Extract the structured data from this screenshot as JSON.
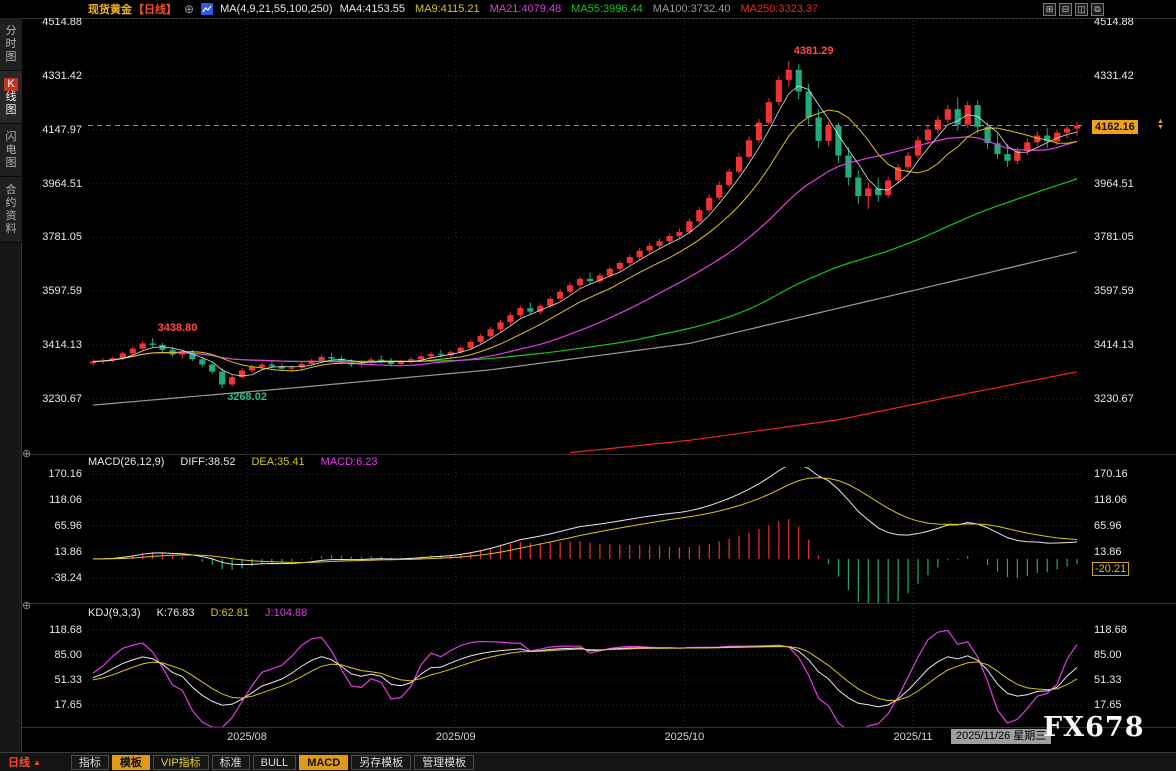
{
  "colors": {
    "up": "#ef3232",
    "down": "#23a97d",
    "ma4": "#e0e0e0",
    "ma9": "#d6c51e",
    "ma21": "#e23ce2",
    "ma55": "#17c520",
    "ma100": "#9a9a9a",
    "ma250": "#ee2525",
    "grid": "#2e2e2e",
    "dashed_line": "#c98a1f",
    "badge_bg": "#f0a11a",
    "anno_red": "#ff4a4a",
    "anno_green": "#2bbf8a"
  },
  "topbar": {
    "symbol": "现货黄金",
    "period_tag": "【日线】",
    "ma_group_label": "MA(4,9,21,55,100,250)",
    "ma_items": [
      {
        "text": "MA4:4153.55",
        "color": "#e8e8e8"
      },
      {
        "text": "MA9:4115.21",
        "color": "#d6c51e"
      },
      {
        "text": "MA21:4079.48",
        "color": "#e23ce2"
      },
      {
        "text": "MA55:3996.44",
        "color": "#17c520"
      },
      {
        "text": "MA100:3732.40",
        "color": "#9a9a9a"
      },
      {
        "text": "MA250:3323.37",
        "color": "#ee2525"
      }
    ],
    "window_icons": [
      "⊞",
      "⊟",
      "◫",
      "⧉"
    ]
  },
  "sidebar": {
    "items": [
      {
        "label": "分时图",
        "active": false
      },
      {
        "label": "K线图",
        "active": true
      },
      {
        "label": "闪电图",
        "active": false
      },
      {
        "label": "合约资料",
        "active": false
      }
    ]
  },
  "main_panel": {
    "y_labels": [
      "4514.88",
      "4331.42",
      "4147.97",
      "3964.51",
      "3781.05",
      "3597.59",
      "3414.13",
      "3230.67"
    ],
    "last_price": "4162.16",
    "annotations": [
      {
        "text": "4381.29",
        "color": "#ff4a4a",
        "idx": 70,
        "price": 4381.29,
        "pos": "above"
      },
      {
        "text": "3438.80",
        "color": "#ff4a4a",
        "idx": 6,
        "price": 3438.8,
        "pos": "above"
      },
      {
        "text": "3268.02",
        "color": "#2bbf8a",
        "idx": 13,
        "price": 3268.02,
        "pos": "below"
      }
    ]
  },
  "macd_panel": {
    "title": "MACD(26,12,9)",
    "diff_label": "DIFF:38.52",
    "dea_label": "DEA:35.41",
    "macd_label": "MACD:6.23",
    "y_labels": [
      "170.16",
      "118.06",
      "65.96",
      "13.86",
      "-38.24"
    ],
    "badge": "-20.21"
  },
  "kdj_panel": {
    "title": "KDJ(9,3,3)",
    "k_label": "K:76.83",
    "d_label": "D:62.81",
    "j_label": "J:104.88",
    "y_labels": [
      "118.68",
      "85.00",
      "51.33",
      "17.65"
    ]
  },
  "x_axis": {
    "month_labels": [
      {
        "label": "2025/08",
        "idx": 16
      },
      {
        "label": "2025/09",
        "idx": 37
      },
      {
        "label": "2025/10",
        "idx": 60
      },
      {
        "label": "2025/11",
        "idx": 83
      }
    ],
    "date_badge": "2025/11/26 星期三",
    "watermark": "FX678"
  },
  "toolbar": {
    "period": "日线",
    "tabs": [
      {
        "label": "指标",
        "style": "normal"
      },
      {
        "label": "模板",
        "style": "selected"
      },
      {
        "label": "VIP指标",
        "style": "vip"
      },
      {
        "label": "标准",
        "style": "normal"
      },
      {
        "label": "BULL",
        "style": "normal"
      },
      {
        "label": "MACD",
        "style": "selected"
      },
      {
        "label": "另存模板",
        "style": "normal"
      },
      {
        "label": "管理模板",
        "style": "normal"
      }
    ]
  },
  "chart_data": {
    "type": "candlestick",
    "symbol": "现货黄金",
    "period": "日线",
    "last_price": 4162.16,
    "price_axis": {
      "max": 4514.88,
      "min": 3230.67
    },
    "ma_periods": [
      4,
      9,
      21,
      55,
      100,
      250
    ],
    "ma_latest": {
      "ma4": 4153.55,
      "ma9": 4115.21,
      "ma21": 4079.48,
      "ma55": 3996.44,
      "ma100": 3732.4,
      "ma250": 3323.37
    },
    "month_start_indices": {
      "2025/08": 16,
      "2025/09": 37,
      "2025/10": 60,
      "2025/11": 83
    },
    "ma100_anchors": [
      [
        0,
        3210
      ],
      [
        20,
        3268
      ],
      [
        40,
        3330
      ],
      [
        60,
        3420
      ],
      [
        75,
        3540
      ],
      [
        90,
        3660
      ],
      [
        99,
        3732.4
      ]
    ],
    "ma250_anchors": [
      [
        48,
        3048
      ],
      [
        60,
        3090
      ],
      [
        75,
        3160
      ],
      [
        88,
        3250
      ],
      [
        99,
        3323.37
      ]
    ],
    "indicators": {
      "macd": {
        "params": [
          26,
          12,
          9
        ],
        "diff": 38.52,
        "dea": 35.41,
        "macd": 6.23,
        "axis_max": 170.16,
        "axis_min": -38.24,
        "current_marker": -20.21
      },
      "kdj": {
        "params": [
          9,
          3,
          3
        ],
        "k": 76.83,
        "d": 62.81,
        "j": 104.88,
        "axis_max": 118.68,
        "axis_min": 17.65
      }
    },
    "candles_ohlc": [
      [
        3352,
        3366,
        3344,
        3358
      ],
      [
        3358,
        3370,
        3350,
        3362
      ],
      [
        3362,
        3376,
        3355,
        3370
      ],
      [
        3370,
        3392,
        3364,
        3386
      ],
      [
        3386,
        3410,
        3380,
        3402
      ],
      [
        3402,
        3428,
        3396,
        3420
      ],
      [
        3420,
        3438.8,
        3408,
        3415
      ],
      [
        3415,
        3422,
        3390,
        3398
      ],
      [
        3398,
        3408,
        3376,
        3382
      ],
      [
        3382,
        3395,
        3368,
        3390
      ],
      [
        3390,
        3398,
        3360,
        3366
      ],
      [
        3366,
        3374,
        3340,
        3348
      ],
      [
        3348,
        3356,
        3316,
        3324
      ],
      [
        3324,
        3334,
        3268.02,
        3280
      ],
      [
        3280,
        3312,
        3274,
        3305
      ],
      [
        3305,
        3335,
        3300,
        3328
      ],
      [
        3328,
        3348,
        3320,
        3340
      ],
      [
        3340,
        3355,
        3330,
        3348
      ],
      [
        3348,
        3360,
        3336,
        3342
      ],
      [
        3342,
        3352,
        3326,
        3334
      ],
      [
        3334,
        3346,
        3322,
        3338
      ],
      [
        3338,
        3356,
        3332,
        3350
      ],
      [
        3350,
        3368,
        3344,
        3362
      ],
      [
        3362,
        3380,
        3354,
        3374
      ],
      [
        3374,
        3388,
        3360,
        3368
      ],
      [
        3368,
        3378,
        3348,
        3356
      ],
      [
        3356,
        3366,
        3340,
        3348
      ],
      [
        3348,
        3362,
        3338,
        3355
      ],
      [
        3355,
        3372,
        3348,
        3365
      ],
      [
        3365,
        3380,
        3352,
        3360
      ],
      [
        3360,
        3370,
        3342,
        3350
      ],
      [
        3350,
        3364,
        3344,
        3358
      ],
      [
        3358,
        3374,
        3350,
        3366
      ],
      [
        3366,
        3384,
        3358,
        3376
      ],
      [
        3376,
        3392,
        3366,
        3384
      ],
      [
        3384,
        3398,
        3372,
        3380
      ],
      [
        3380,
        3396,
        3370,
        3390
      ],
      [
        3390,
        3412,
        3384,
        3405
      ],
      [
        3405,
        3432,
        3398,
        3425
      ],
      [
        3425,
        3452,
        3418,
        3445
      ],
      [
        3445,
        3476,
        3438,
        3468
      ],
      [
        3468,
        3500,
        3460,
        3492
      ],
      [
        3492,
        3525,
        3484,
        3516
      ],
      [
        3516,
        3548,
        3508,
        3540
      ],
      [
        3540,
        3560,
        3520,
        3528
      ],
      [
        3528,
        3556,
        3518,
        3548
      ],
      [
        3548,
        3580,
        3540,
        3572
      ],
      [
        3572,
        3605,
        3564,
        3596
      ],
      [
        3596,
        3628,
        3588,
        3618
      ],
      [
        3618,
        3648,
        3610,
        3640
      ],
      [
        3640,
        3662,
        3622,
        3632
      ],
      [
        3632,
        3660,
        3624,
        3652
      ],
      [
        3652,
        3682,
        3644,
        3674
      ],
      [
        3674,
        3702,
        3666,
        3694
      ],
      [
        3694,
        3722,
        3686,
        3714
      ],
      [
        3714,
        3745,
        3706,
        3736
      ],
      [
        3736,
        3762,
        3726,
        3752
      ],
      [
        3752,
        3778,
        3742,
        3768
      ],
      [
        3768,
        3795,
        3758,
        3786
      ],
      [
        3786,
        3812,
        3776,
        3800
      ],
      [
        3800,
        3845,
        3792,
        3836
      ],
      [
        3836,
        3885,
        3828,
        3874
      ],
      [
        3874,
        3928,
        3866,
        3916
      ],
      [
        3916,
        3972,
        3908,
        3960
      ],
      [
        3960,
        4015,
        3952,
        4005
      ],
      [
        4005,
        4068,
        3996,
        4056
      ],
      [
        4056,
        4125,
        4046,
        4112
      ],
      [
        4112,
        4185,
        4102,
        4172
      ],
      [
        4172,
        4255,
        4162,
        4242
      ],
      [
        4242,
        4330,
        4228,
        4318
      ],
      [
        4318,
        4381.29,
        4295,
        4352
      ],
      [
        4352,
        4372,
        4252,
        4278
      ],
      [
        4278,
        4305,
        4165,
        4190
      ],
      [
        4190,
        4218,
        4085,
        4110
      ],
      [
        4110,
        4175,
        4092,
        4160
      ],
      [
        4160,
        4172,
        4035,
        4060
      ],
      [
        4060,
        4088,
        3958,
        3985
      ],
      [
        3985,
        4010,
        3895,
        3922
      ],
      [
        3922,
        3968,
        3878,
        3948
      ],
      [
        3948,
        3985,
        3902,
        3925
      ],
      [
        3925,
        3988,
        3915,
        3975
      ],
      [
        3975,
        4032,
        3965,
        4020
      ],
      [
        4020,
        4072,
        4008,
        4060
      ],
      [
        4060,
        4125,
        4050,
        4112
      ],
      [
        4112,
        4162,
        4098,
        4148
      ],
      [
        4148,
        4195,
        4135,
        4182
      ],
      [
        4182,
        4232,
        4170,
        4218
      ],
      [
        4218,
        4258,
        4145,
        4165
      ],
      [
        4165,
        4245,
        4155,
        4232
      ],
      [
        4232,
        4248,
        4135,
        4158
      ],
      [
        4158,
        4172,
        4082,
        4102
      ],
      [
        4102,
        4135,
        4048,
        4065
      ],
      [
        4065,
        4098,
        4022,
        4042
      ],
      [
        4042,
        4088,
        4030,
        4075
      ],
      [
        4075,
        4118,
        4062,
        4105
      ],
      [
        4105,
        4142,
        4092,
        4128
      ],
      [
        4128,
        4155,
        4085,
        4108
      ],
      [
        4108,
        4148,
        4096,
        4138
      ],
      [
        4138,
        4165,
        4118,
        4152
      ],
      [
        4152,
        4175,
        4128,
        4162.16
      ]
    ]
  }
}
